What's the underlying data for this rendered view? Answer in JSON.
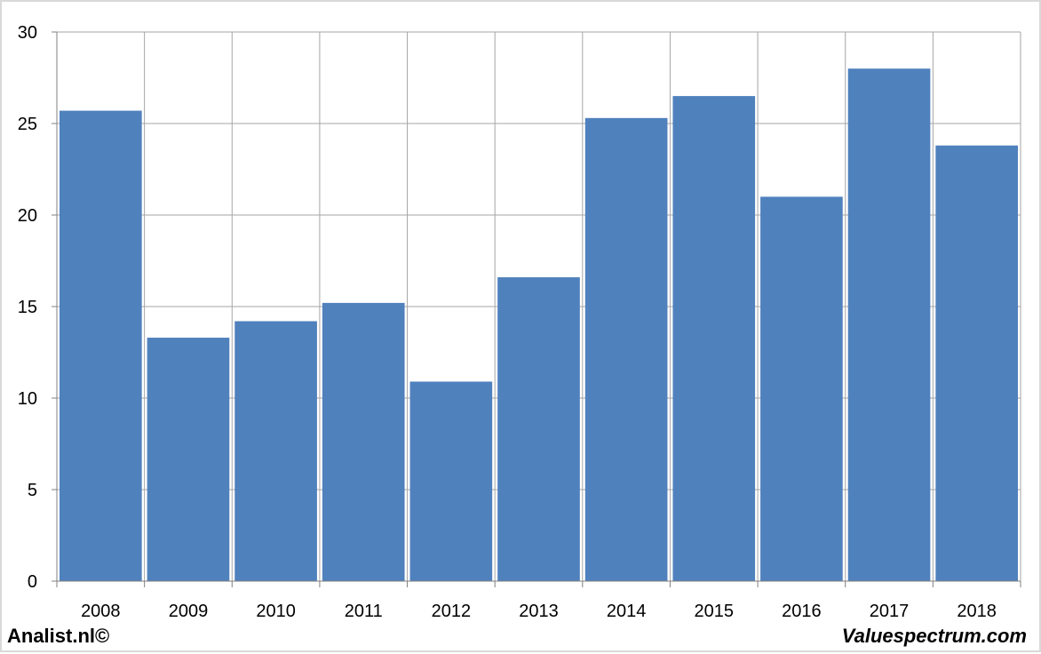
{
  "chart_data": {
    "type": "bar",
    "title": "",
    "xlabel": "",
    "ylabel": "",
    "categories": [
      "2008",
      "2009",
      "2010",
      "2011",
      "2012",
      "2013",
      "2014",
      "2015",
      "2016",
      "2017",
      "2018"
    ],
    "values": [
      25.7,
      13.3,
      14.2,
      15.2,
      10.9,
      16.6,
      25.3,
      26.5,
      21.0,
      28.0,
      23.8
    ],
    "ylim": [
      0,
      30
    ],
    "yticks": [
      0,
      5,
      10,
      15,
      20,
      25,
      30
    ],
    "grid": true,
    "bar_color": "#4f81bd",
    "grid_color": "#a6a6a6"
  },
  "footer": {
    "left": "Analist.nl©",
    "right": "Valuespectrum.com"
  }
}
